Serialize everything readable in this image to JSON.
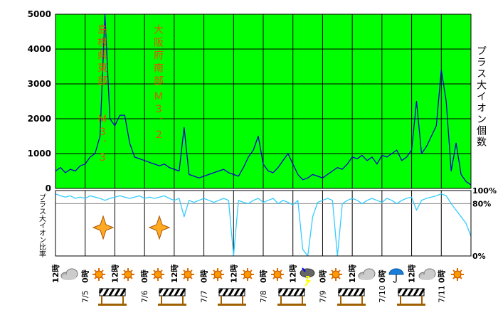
{
  "chart_data": [
    {
      "type": "line",
      "color": "#0000cc",
      "background": "#00ff00",
      "y_label": "プラス大イオン個数",
      "annotations": [
        "島根県東部",
        "Ｍ３．３",
        "大阪府南部",
        "Ｍ３．２"
      ],
      "xlim": [
        0,
        168
      ],
      "ylim": [
        0,
        5000
      ],
      "yticks": [
        0,
        1000,
        2000,
        3000,
        4000,
        5000
      ],
      "grid": true,
      "x": [
        0,
        2,
        4,
        6,
        8,
        10,
        12,
        14,
        16,
        18,
        20,
        22,
        24,
        26,
        28,
        30,
        32,
        34,
        36,
        38,
        40,
        42,
        44,
        46,
        48,
        50,
        52,
        54,
        56,
        58,
        60,
        62,
        64,
        66,
        68,
        70,
        72,
        74,
        76,
        78,
        80,
        82,
        84,
        86,
        88,
        90,
        92,
        94,
        96,
        98,
        100,
        102,
        104,
        106,
        108,
        110,
        112,
        114,
        116,
        118,
        120,
        122,
        124,
        126,
        128,
        130,
        132,
        134,
        136,
        138,
        140,
        142,
        144,
        146,
        148,
        150,
        152,
        154,
        156,
        158,
        160,
        162,
        164,
        166,
        168
      ],
      "values": [
        500,
        600,
        450,
        550,
        500,
        650,
        700,
        900,
        1000,
        1500,
        5000,
        2000,
        1800,
        2100,
        2100,
        1300,
        900,
        850,
        800,
        750,
        700,
        650,
        700,
        600,
        550,
        500,
        1750,
        400,
        350,
        300,
        350,
        400,
        450,
        500,
        550,
        450,
        400,
        350,
        600,
        900,
        1100,
        1500,
        700,
        500,
        450,
        600,
        800,
        1000,
        700,
        400,
        250,
        300,
        400,
        350,
        300,
        400,
        500,
        600,
        550,
        700,
        900,
        850,
        950,
        800,
        900,
        700,
        950,
        900,
        1000,
        1100,
        800,
        900,
        1100,
        2500,
        1000,
        1200,
        1500,
        1800,
        3400,
        2500,
        500,
        1300,
        400,
        200,
        100
      ]
    },
    {
      "type": "line",
      "color": "#33ccff",
      "background": "#ffffff",
      "y_label": "プラス大イオン比率",
      "xlim": [
        0,
        168
      ],
      "ylim": [
        0,
        100
      ],
      "yticks": [
        {
          "value": 0,
          "label": "0%"
        },
        {
          "value": 80,
          "label": "80%"
        },
        {
          "value": 100,
          "label": "100%"
        }
      ],
      "xticks": [
        {
          "value": 0,
          "label": "12時"
        },
        {
          "value": 12,
          "label": "0時"
        },
        {
          "value": 24,
          "label": "12時"
        },
        {
          "value": 36,
          "label": "0時"
        },
        {
          "value": 48,
          "label": "12時"
        },
        {
          "value": 60,
          "label": "0時"
        },
        {
          "value": 72,
          "label": "12時"
        },
        {
          "value": 84,
          "label": "0時"
        },
        {
          "value": 96,
          "label": "12時"
        },
        {
          "value": 108,
          "label": "0時"
        },
        {
          "value": 120,
          "label": "12時"
        },
        {
          "value": 132,
          "label": "0時"
        },
        {
          "value": 144,
          "label": "12時"
        },
        {
          "value": 156,
          "label": "0時"
        }
      ],
      "date_labels": [
        {
          "value": 12,
          "label": "7/5"
        },
        {
          "value": 36,
          "label": "7/6"
        },
        {
          "value": 60,
          "label": "7/7"
        },
        {
          "value": 84,
          "label": "7/8"
        },
        {
          "value": 108,
          "label": "7/9"
        },
        {
          "value": 132,
          "label": "7/10"
        },
        {
          "value": 156,
          "label": "7/11"
        }
      ],
      "x": [
        0,
        2,
        4,
        6,
        8,
        10,
        12,
        14,
        16,
        18,
        20,
        22,
        24,
        26,
        28,
        30,
        32,
        34,
        36,
        38,
        40,
        42,
        44,
        46,
        48,
        50,
        52,
        54,
        56,
        58,
        60,
        62,
        64,
        66,
        68,
        70,
        72,
        74,
        76,
        78,
        80,
        82,
        84,
        86,
        88,
        90,
        92,
        94,
        96,
        98,
        100,
        102,
        104,
        106,
        108,
        110,
        112,
        114,
        116,
        118,
        120,
        122,
        124,
        126,
        128,
        130,
        132,
        134,
        136,
        138,
        140,
        142,
        144,
        146,
        148,
        150,
        152,
        154,
        156,
        158,
        160,
        162,
        164,
        166,
        168
      ],
      "values": [
        95,
        92,
        90,
        92,
        88,
        90,
        88,
        92,
        90,
        88,
        85,
        88,
        90,
        92,
        90,
        88,
        90,
        92,
        88,
        90,
        88,
        90,
        92,
        88,
        85,
        88,
        60,
        85,
        82,
        85,
        88,
        85,
        82,
        85,
        88,
        85,
        0,
        85,
        82,
        80,
        85,
        88,
        82,
        85,
        88,
        80,
        85,
        82,
        78,
        85,
        10,
        0,
        60,
        82,
        85,
        88,
        85,
        0,
        80,
        85,
        88,
        85,
        80,
        85,
        88,
        85,
        82,
        88,
        85,
        80,
        85,
        88,
        90,
        70,
        85,
        88,
        90,
        92,
        95,
        92,
        80,
        70,
        60,
        50,
        30
      ]
    }
  ]
}
